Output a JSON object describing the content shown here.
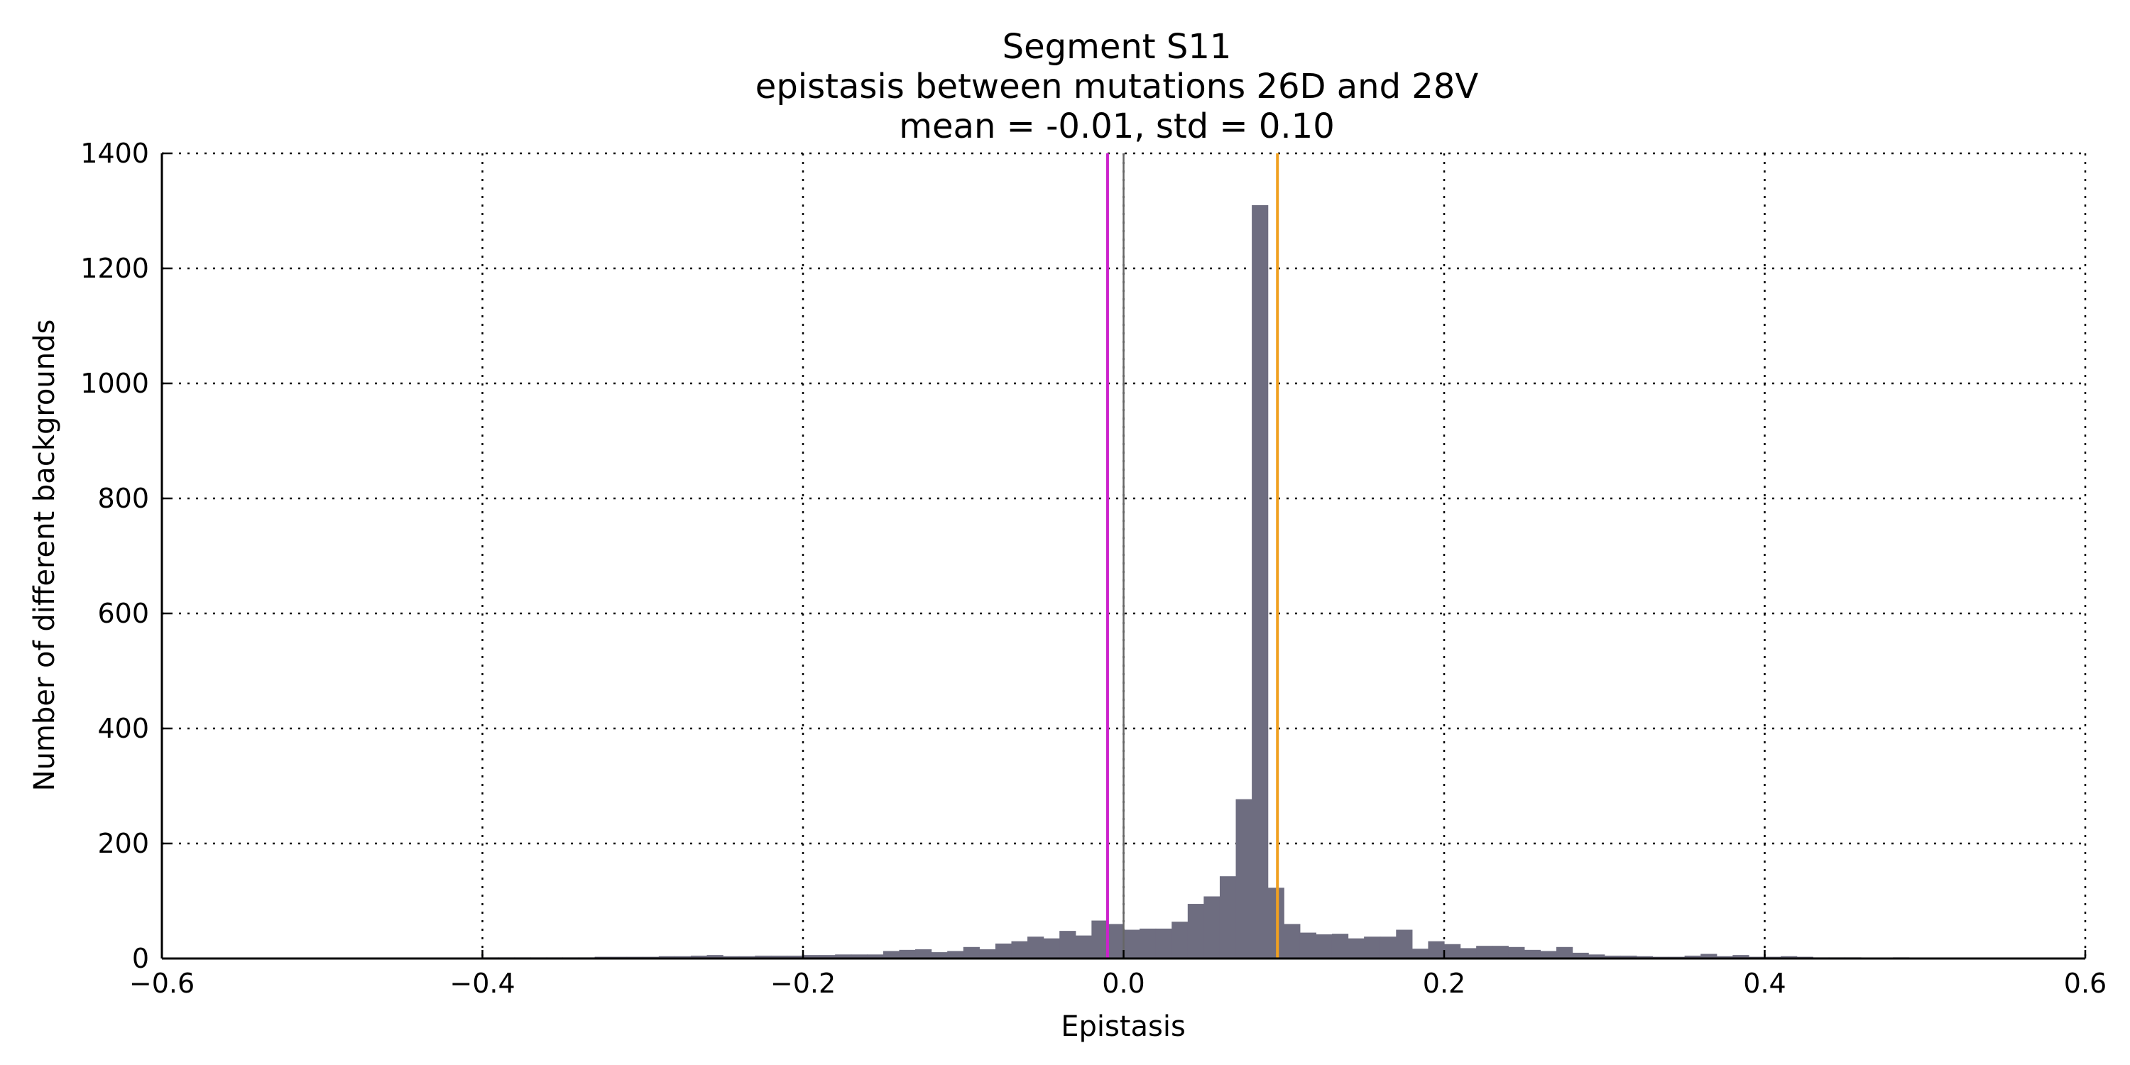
{
  "chart_data": {
    "type": "bar",
    "title_lines": [
      "Segment S11",
      "epistasis between mutations 26D and 28V",
      "mean = -0.01, std = 0.10"
    ],
    "xlabel": "Epistasis",
    "ylabel": "Number of different backgrounds",
    "xlim": [
      -0.6,
      0.6
    ],
    "ylim": [
      0,
      1400
    ],
    "xticks": [
      -0.6,
      -0.4,
      -0.2,
      0.0,
      0.2,
      0.4,
      0.6
    ],
    "xtick_labels": [
      "−0.6",
      "−0.4",
      "−0.2",
      "0.0",
      "0.2",
      "0.4",
      "0.6"
    ],
    "yticks": [
      0,
      200,
      400,
      600,
      800,
      1000,
      1200,
      1400
    ],
    "ytick_labels": [
      "0",
      "200",
      "400",
      "600",
      "800",
      "1000",
      "1200",
      "1400"
    ],
    "grid": true,
    "bar_color": "#6e6d80",
    "bin_start": -0.6,
    "bin_width": 0.01,
    "counts": [
      1,
      1,
      1,
      1,
      1,
      1,
      1,
      1,
      1,
      1,
      1,
      1,
      1,
      1,
      1,
      1,
      1,
      1,
      1,
      1,
      2,
      2,
      2,
      2,
      2,
      2,
      2,
      3,
      3,
      3,
      3,
      4,
      4,
      5,
      6,
      4,
      4,
      5,
      5,
      5,
      6,
      6,
      7,
      7,
      7,
      13,
      15,
      16,
      11,
      13,
      20,
      16,
      26,
      30,
      38,
      35,
      48,
      40,
      66,
      60,
      50,
      52,
      52,
      64,
      95,
      108,
      143,
      277,
      1310,
      123,
      60,
      45,
      42,
      43,
      35,
      38,
      38,
      50,
      17,
      30,
      25,
      18,
      22,
      22,
      20,
      15,
      13,
      20,
      10,
      7,
      5,
      5,
      4,
      3,
      3,
      5,
      8,
      4,
      6,
      3,
      3,
      4,
      3,
      2,
      2,
      2,
      1,
      1,
      2,
      1,
      1,
      1,
      1,
      1,
      1,
      1,
      1,
      1,
      1,
      1
    ],
    "reference_lines": [
      {
        "x": 0.0,
        "color": "#666666",
        "name": "zero-line"
      },
      {
        "x": -0.01,
        "color": "#cc22cc",
        "name": "mean-line"
      },
      {
        "x": 0.096,
        "color": "#f0a020",
        "name": "observed-line"
      }
    ]
  }
}
